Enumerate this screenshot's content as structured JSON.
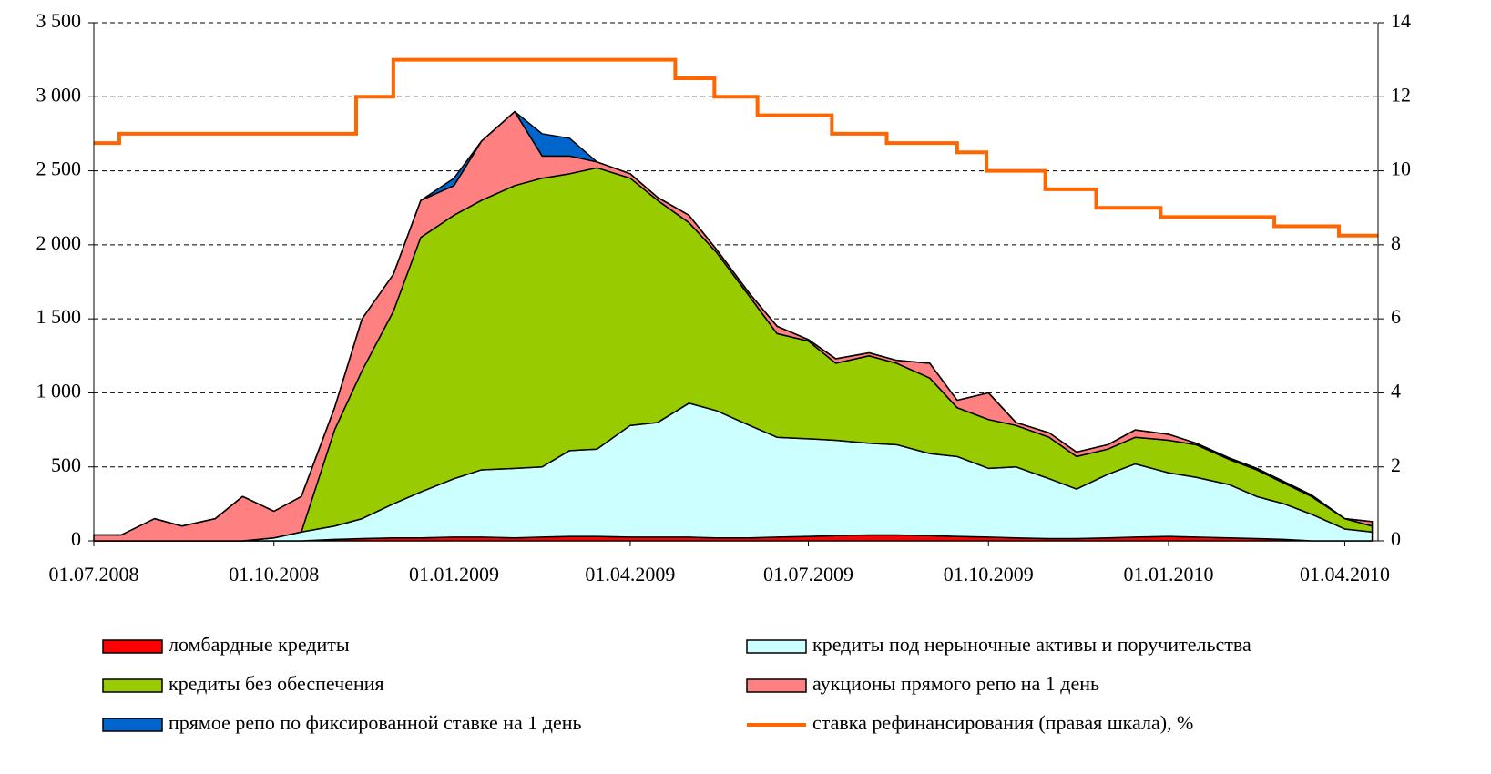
{
  "chart_data": {
    "type": "stacked-area",
    "x": [
      "01.07.2008",
      "15.07.2008",
      "01.08.2008",
      "15.08.2008",
      "01.09.2008",
      "15.09.2008",
      "01.10.2008",
      "15.10.2008",
      "01.11.2008",
      "15.11.2008",
      "01.12.2008",
      "15.12.2008",
      "01.01.2009",
      "15.01.2009",
      "01.02.2009",
      "15.02.2009",
      "01.03.2009",
      "15.03.2009",
      "01.04.2009",
      "15.04.2009",
      "01.05.2009",
      "15.05.2009",
      "01.06.2009",
      "15.06.2009",
      "01.07.2009",
      "15.07.2009",
      "01.08.2009",
      "15.08.2009",
      "01.09.2009",
      "15.09.2009",
      "01.10.2009",
      "15.10.2009",
      "01.11.2009",
      "15.11.2009",
      "01.12.2009",
      "15.12.2009",
      "01.01.2010",
      "15.01.2010",
      "01.02.2010",
      "15.02.2010",
      "01.03.2010",
      "15.03.2010",
      "01.04.2010",
      "15.04.2010"
    ],
    "series": [
      {
        "name": "ломбардные кредиты",
        "color": "#ff0000",
        "values": [
          0,
          0,
          0,
          0,
          0,
          0,
          0,
          0,
          10,
          15,
          20,
          20,
          25,
          25,
          20,
          25,
          30,
          30,
          25,
          25,
          25,
          20,
          20,
          25,
          30,
          35,
          40,
          40,
          35,
          30,
          25,
          20,
          15,
          15,
          20,
          25,
          30,
          25,
          20,
          15,
          10,
          0,
          0,
          0
        ]
      },
      {
        "name": "кредиты под нерыночные активы и поручительства",
        "color": "#ccffff",
        "values": [
          0,
          0,
          0,
          0,
          0,
          0,
          20,
          60,
          90,
          135,
          230,
          310,
          395,
          455,
          470,
          475,
          580,
          590,
          755,
          775,
          905,
          860,
          760,
          675,
          660,
          645,
          620,
          610,
          555,
          540,
          465,
          480,
          405,
          335,
          430,
          495,
          430,
          405,
          360,
          285,
          240,
          180,
          80,
          60
        ]
      },
      {
        "name": "кредиты без обеспечения",
        "color": "#99cc00",
        "values": [
          0,
          0,
          0,
          0,
          0,
          0,
          0,
          0,
          650,
          1000,
          1300,
          1720,
          1780,
          1820,
          1910,
          1950,
          1870,
          1900,
          1670,
          1500,
          1220,
          1070,
          870,
          700,
          660,
          520,
          590,
          550,
          510,
          330,
          330,
          280,
          280,
          220,
          170,
          180,
          220,
          220,
          170,
          180,
          140,
          120,
          70,
          40
        ]
      },
      {
        "name": "аукционы прямого репо на 1 день",
        "color": "#ff8080",
        "values": [
          40,
          40,
          150,
          100,
          150,
          300,
          180,
          240,
          150,
          350,
          250,
          250,
          200,
          400,
          500,
          150,
          120,
          40,
          30,
          20,
          50,
          20,
          20,
          50,
          10,
          30,
          20,
          20,
          100,
          50,
          180,
          20,
          30,
          30,
          30,
          50,
          40,
          10,
          10,
          10,
          10,
          10,
          0,
          30
        ]
      },
      {
        "name": "прямое репо по фиксированной ставке на 1 день",
        "color": "#0066cc",
        "values": [
          0,
          0,
          0,
          0,
          0,
          0,
          0,
          0,
          0,
          0,
          0,
          0,
          50,
          0,
          0,
          150,
          120,
          0,
          0,
          0,
          0,
          0,
          0,
          0,
          0,
          0,
          0,
          0,
          0,
          0,
          0,
          0,
          0,
          0,
          0,
          0,
          0,
          0,
          0,
          0,
          0,
          0,
          0,
          0
        ]
      },
      {
        "name": "ставка рефинансирования (правая шкала), %",
        "color": "#ff6600",
        "axis": "y2",
        "type": "step",
        "x": [
          "01.07.2008",
          "14.07.2008",
          "12.11.2008",
          "01.12.2008",
          "24.04.2009",
          "14.05.2009",
          "05.06.2009",
          "13.07.2009",
          "10.08.2009",
          "15.09.2009",
          "30.09.2009",
          "30.10.2009",
          "25.11.2009",
          "28.12.2009",
          "24.02.2010",
          "29.03.2010",
          "18.04.2010"
        ],
        "values": [
          10.75,
          11,
          12,
          13,
          12.5,
          12,
          11.5,
          11,
          10.75,
          10.5,
          10,
          9.5,
          9,
          8.75,
          8.5,
          8.25,
          8.25
        ]
      }
    ],
    "xlim": [
      "01.07.2008",
      "18.04.2010"
    ],
    "xticks": [
      "01.07.2008",
      "01.10.2008",
      "01.01.2009",
      "01.04.2009",
      "01.07.2009",
      "01.10.2009",
      "01.01.2010",
      "01.04.2010"
    ],
    "ylim": [
      0,
      3500
    ],
    "yticks": [
      0,
      500,
      {
        "value": 1000,
        "label": "1 000"
      },
      {
        "value": 1500,
        "label": "1 500"
      },
      {
        "value": 2000,
        "label": "2 000"
      },
      {
        "value": 2500,
        "label": "2 500"
      },
      {
        "value": 3000,
        "label": "3 000"
      },
      {
        "value": 3500,
        "label": "3 500"
      }
    ],
    "y2lim": [
      0,
      14
    ],
    "y2ticks": [
      0,
      2,
      4,
      6,
      8,
      10,
      12,
      14
    ],
    "grid": true
  }
}
